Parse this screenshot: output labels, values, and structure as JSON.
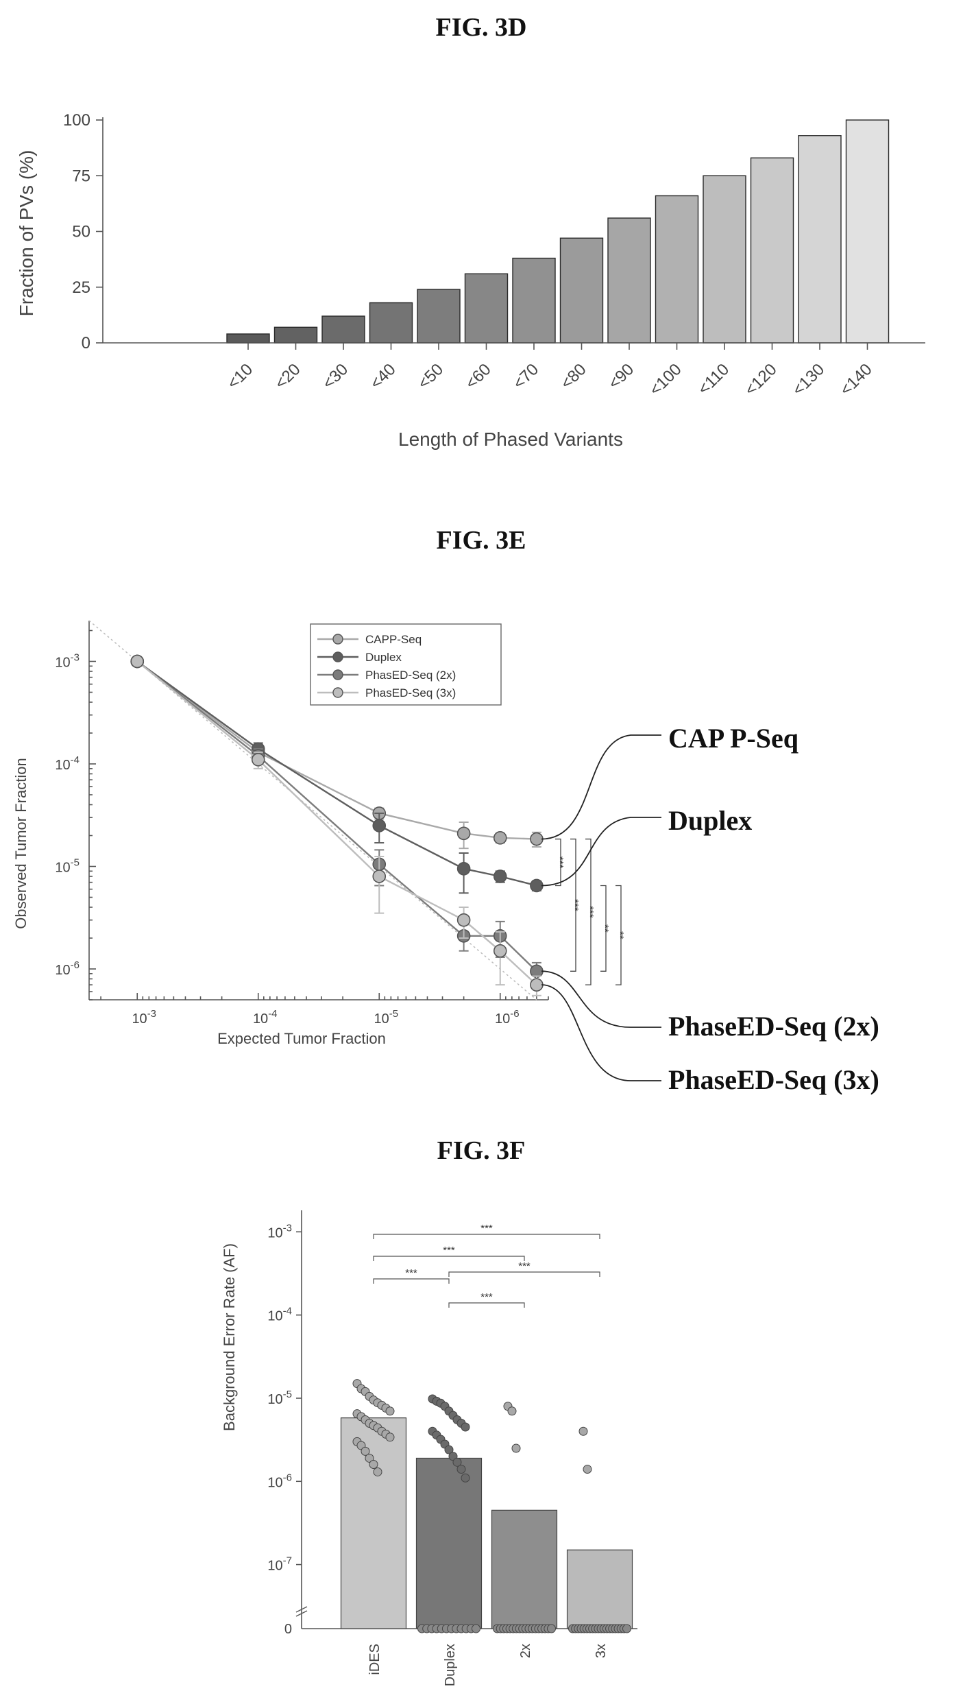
{
  "colors": {
    "capp": "#a9a9a9",
    "duplex": "#5e5e5e",
    "phased2x": "#7c7c7c",
    "phased3x": "#bdbdbd",
    "identity": "#bbbbbb"
  },
  "chart_data": [
    {
      "id": "fig3d",
      "figure_label": "FIG. 3D",
      "type": "bar",
      "xlabel": "Length of Phased Variants",
      "ylabel": "Fraction of PVs (%)",
      "ylim": [
        0,
        100
      ],
      "yticks": [
        0,
        25,
        50,
        75,
        100
      ],
      "categories": [
        "<10",
        "<20",
        "<30",
        "<40",
        "<50",
        "<60",
        "<70",
        "<80",
        "<90",
        "<100",
        "<110",
        "<120",
        "<130",
        "<140"
      ],
      "values": [
        4,
        7,
        12,
        18,
        24,
        31,
        38,
        47,
        56,
        66,
        75,
        83,
        93,
        100
      ],
      "bar_shades": [
        "#5a5a5a",
        "#626262",
        "#6b6b6b",
        "#747474",
        "#7d7d7d",
        "#878787",
        "#919191",
        "#9b9b9b",
        "#a6a6a6",
        "#b1b1b1",
        "#bdbdbd",
        "#c9c9c9",
        "#d5d5d5",
        "#e1e1e1"
      ],
      "grid": false
    },
    {
      "id": "fig3e",
      "figure_label": "FIG. 3E",
      "type": "line",
      "xlabel": "Expected Tumor Fraction",
      "ylabel": "Observed Tumor Fraction",
      "x_scale": "log-reversed",
      "y_scale": "log",
      "xlim": [
        0.0025,
        4e-07
      ],
      "ylim": [
        5e-07,
        0.0025
      ],
      "xticks": [
        {
          "value": 0.001,
          "base": "10",
          "exp": "-3"
        },
        {
          "value": 0.0001,
          "base": "10",
          "exp": "-4"
        },
        {
          "value": 1e-05,
          "base": "10",
          "exp": "-5"
        },
        {
          "value": 1e-06,
          "base": "10",
          "exp": "-6"
        }
      ],
      "yticks": [
        {
          "value": 0.001,
          "base": "10",
          "exp": "-3"
        },
        {
          "value": 0.0001,
          "base": "10",
          "exp": "-4"
        },
        {
          "value": 1e-05,
          "base": "10",
          "exp": "-5"
        },
        {
          "value": 1e-06,
          "base": "10",
          "exp": "-6"
        }
      ],
      "x": [
        0.001,
        0.0001,
        1e-05,
        2e-06,
        1e-06,
        5e-07
      ],
      "series": [
        {
          "name": "CAPP-Seq",
          "color_key": "capp",
          "values": [
            0.001,
            0.00013,
            3.3e-05,
            2.1e-05,
            1.9e-05,
            1.85e-05
          ],
          "err": [
            0,
            2e-05,
            4e-06,
            6e-06,
            2e-06,
            3e-06
          ]
        },
        {
          "name": "Duplex",
          "color_key": "duplex",
          "values": [
            0.001,
            0.00014,
            2.5e-05,
            9.5e-06,
            8e-06,
            6.5e-06
          ],
          "err": [
            0,
            2e-05,
            8e-06,
            4e-06,
            1e-06,
            7e-07
          ]
        },
        {
          "name": "PhasED-Seq (2x)",
          "color_key": "phased2x",
          "values": [
            0.001,
            0.00012,
            1.05e-05,
            2.1e-06,
            2.1e-06,
            9.5e-07
          ],
          "err": [
            0,
            2e-05,
            4e-06,
            6e-07,
            8e-07,
            2e-07
          ]
        },
        {
          "name": "PhasED-Seq (3x)",
          "color_key": "phased3x",
          "values": [
            0.001,
            0.00011,
            8e-06,
            3e-06,
            1.5e-06,
            7e-07
          ],
          "err": [
            0,
            2e-05,
            4.5e-06,
            1e-06,
            8e-07,
            1.5e-07
          ]
        }
      ],
      "legend_position": "top",
      "significance": [
        "***",
        "***",
        "***",
        "**",
        "**"
      ],
      "callouts": [
        "CAP P-Seq",
        "Duplex",
        "PhaseED-Seq (2x)",
        "PhaseED-Seq (3x)"
      ],
      "grid": false
    },
    {
      "id": "fig3f",
      "figure_label": "FIG. 3F",
      "type": "bar",
      "ylabel": "Background Error Rate (AF)",
      "y_scale": "log",
      "ylim": [
        3e-08,
        0.0015
      ],
      "yticks": [
        {
          "value": 0.001,
          "base": "10",
          "exp": "-3"
        },
        {
          "value": 0.0001,
          "base": "10",
          "exp": "-4"
        },
        {
          "value": 1e-05,
          "base": "10",
          "exp": "-5"
        },
        {
          "value": 1e-06,
          "base": "10",
          "exp": "-6"
        },
        {
          "value": 1e-07,
          "base": "10",
          "exp": "-7"
        }
      ],
      "zero_label": "0",
      "categories": [
        "iDES",
        "Duplex",
        "2x",
        "3x"
      ],
      "values": [
        5.8e-06,
        1.9e-06,
        4.5e-07,
        1.5e-07
      ],
      "bar_colors": [
        "#c6c6c6",
        "#777777",
        "#8e8e8e",
        "#bababa"
      ],
      "points": [
        [
          1.5e-05,
          1.3e-05,
          1.2e-05,
          1.05e-05,
          9.5e-06,
          8.8e-06,
          8.2e-06,
          7.6e-06,
          7e-06,
          6.5e-06,
          6e-06,
          5.5e-06,
          5e-06,
          4.7e-06,
          4.4e-06,
          4e-06,
          3.7e-06,
          3.4e-06,
          3e-06,
          2.7e-06,
          2.3e-06,
          1.9e-06,
          1.6e-06,
          1.3e-06
        ],
        [
          9.8e-06,
          9.2e-06,
          8.7e-06,
          8e-06,
          7e-06,
          6.2e-06,
          5.5e-06,
          5e-06,
          4.5e-06,
          4e-06,
          3.6e-06,
          3.2e-06,
          2.8e-06,
          2.4e-06,
          2e-06,
          1.7e-06,
          1.4e-06,
          1.1e-06
        ],
        [
          8e-06,
          7e-06,
          2.5e-06
        ],
        [
          4e-06,
          1.4e-06
        ]
      ],
      "zero_counts": [
        0,
        12,
        18,
        20
      ],
      "significance": [
        {
          "from": 0,
          "to": 1,
          "label": "***"
        },
        {
          "from": 0,
          "to": 2,
          "label": "***"
        },
        {
          "from": 0,
          "to": 3,
          "label": "***"
        },
        {
          "from": 1,
          "to": 2,
          "label": "***"
        },
        {
          "from": 1,
          "to": 3,
          "label": "***"
        }
      ],
      "grid": false
    }
  ]
}
